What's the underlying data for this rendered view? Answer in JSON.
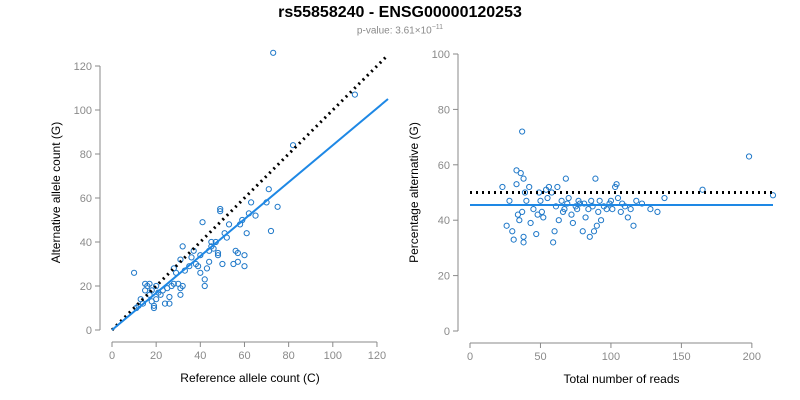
{
  "header": {
    "title": "rs55858240 - ENSG00000120253",
    "pvalue_prefix": "p-value: 3.61×10",
    "pvalue_exp": "−11"
  },
  "colors": {
    "point": "#1f78c8",
    "fit_line": "#1e88e5",
    "reference_line": "#000000",
    "axis": "#8a8a8a"
  },
  "chart_data": [
    {
      "type": "scatter",
      "title": "",
      "xlabel": "Reference allele count (C)",
      "ylabel": "Alternative allele count (G)",
      "xlim": [
        0,
        125
      ],
      "ylim": [
        0,
        125
      ],
      "xticks": [
        0,
        20,
        40,
        60,
        80,
        100,
        120
      ],
      "yticks": [
        0,
        20,
        40,
        60,
        80,
        100,
        120
      ],
      "grid": false,
      "lines": [
        {
          "kind": "reference",
          "style": "dotted",
          "x": [
            0,
            125
          ],
          "y": [
            0,
            125
          ]
        },
        {
          "kind": "fit",
          "style": "solid",
          "x": [
            0,
            125
          ],
          "y": [
            0,
            105
          ]
        }
      ],
      "points": [
        [
          10,
          26
        ],
        [
          11,
          10
        ],
        [
          12,
          11
        ],
        [
          13,
          14
        ],
        [
          14,
          12
        ],
        [
          15,
          18
        ],
        [
          15,
          21
        ],
        [
          16,
          20
        ],
        [
          17,
          16
        ],
        [
          17,
          21
        ],
        [
          18,
          13
        ],
        [
          18,
          18
        ],
        [
          19,
          11
        ],
        [
          19,
          10
        ],
        [
          20,
          14
        ],
        [
          20,
          20
        ],
        [
          21,
          17
        ],
        [
          22,
          16
        ],
        [
          23,
          18
        ],
        [
          24,
          12
        ],
        [
          25,
          19
        ],
        [
          26,
          15
        ],
        [
          26,
          12
        ],
        [
          27,
          20
        ],
        [
          28,
          28
        ],
        [
          28,
          21
        ],
        [
          29,
          26
        ],
        [
          30,
          21
        ],
        [
          31,
          19
        ],
        [
          31,
          16
        ],
        [
          31,
          32
        ],
        [
          32,
          38
        ],
        [
          32,
          20
        ],
        [
          33,
          27
        ],
        [
          35,
          29
        ],
        [
          36,
          33
        ],
        [
          37,
          36
        ],
        [
          38,
          30
        ],
        [
          39,
          29
        ],
        [
          40,
          34
        ],
        [
          40,
          26
        ],
        [
          41,
          49
        ],
        [
          42,
          23
        ],
        [
          42,
          20
        ],
        [
          43,
          28
        ],
        [
          44,
          31
        ],
        [
          44,
          36
        ],
        [
          45,
          38
        ],
        [
          45,
          40
        ],
        [
          46,
          37
        ],
        [
          47,
          40
        ],
        [
          48,
          35
        ],
        [
          48,
          34
        ],
        [
          49,
          54
        ],
        [
          49,
          55
        ],
        [
          50,
          30
        ],
        [
          51,
          44
        ],
        [
          52,
          42
        ],
        [
          53,
          48
        ],
        [
          55,
          30
        ],
        [
          56,
          36
        ],
        [
          57,
          35
        ],
        [
          57,
          31
        ],
        [
          58,
          48
        ],
        [
          59,
          50
        ],
        [
          60,
          34
        ],
        [
          60,
          29
        ],
        [
          61,
          44
        ],
        [
          62,
          53
        ],
        [
          63,
          58
        ],
        [
          65,
          52
        ],
        [
          70,
          58
        ],
        [
          71,
          64
        ],
        [
          72,
          45
        ],
        [
          73,
          126
        ],
        [
          75,
          56
        ],
        [
          82,
          84
        ],
        [
          110,
          107
        ]
      ]
    },
    {
      "type": "scatter",
      "title": "",
      "xlabel": "Total number of reads",
      "ylabel": "Percentage alternative (G)",
      "xlim": [
        0,
        215
      ],
      "ylim": [
        0,
        100
      ],
      "xticks": [
        0,
        50,
        100,
        150,
        200
      ],
      "yticks": [
        0,
        20,
        40,
        60,
        80,
        100
      ],
      "grid": false,
      "lines": [
        {
          "kind": "reference",
          "style": "dotted",
          "x": [
            0,
            215
          ],
          "y": [
            50,
            50
          ]
        },
        {
          "kind": "fit",
          "style": "solid",
          "x": [
            0,
            215
          ],
          "y": [
            45.5,
            45.5
          ]
        }
      ],
      "points": [
        [
          23,
          52
        ],
        [
          26,
          38
        ],
        [
          28,
          47
        ],
        [
          30,
          36
        ],
        [
          31,
          33
        ],
        [
          33,
          58
        ],
        [
          33,
          53
        ],
        [
          34,
          42
        ],
        [
          35,
          40
        ],
        [
          36,
          57
        ],
        [
          37,
          72
        ],
        [
          37,
          43
        ],
        [
          38,
          55
        ],
        [
          38,
          34
        ],
        [
          38,
          32
        ],
        [
          39,
          50
        ],
        [
          40,
          47
        ],
        [
          42,
          52
        ],
        [
          43,
          39
        ],
        [
          45,
          44
        ],
        [
          47,
          35
        ],
        [
          48,
          42
        ],
        [
          49,
          50
        ],
        [
          50,
          47
        ],
        [
          51,
          43
        ],
        [
          52,
          41
        ],
        [
          54,
          51
        ],
        [
          55,
          48
        ],
        [
          56,
          52
        ],
        [
          58,
          50
        ],
        [
          59,
          32
        ],
        [
          60,
          36
        ],
        [
          61,
          45
        ],
        [
          62,
          52
        ],
        [
          63,
          40
        ],
        [
          65,
          47
        ],
        [
          66,
          43
        ],
        [
          67,
          44
        ],
        [
          68,
          55
        ],
        [
          69,
          46
        ],
        [
          70,
          48
        ],
        [
          72,
          42
        ],
        [
          73,
          39
        ],
        [
          75,
          45
        ],
        [
          76,
          44
        ],
        [
          77,
          47
        ],
        [
          78,
          46
        ],
        [
          80,
          36
        ],
        [
          81,
          46
        ],
        [
          82,
          41
        ],
        [
          84,
          44
        ],
        [
          85,
          34
        ],
        [
          86,
          47
        ],
        [
          87,
          45
        ],
        [
          88,
          36
        ],
        [
          89,
          55
        ],
        [
          90,
          38
        ],
        [
          91,
          43
        ],
        [
          92,
          47
        ],
        [
          93,
          40
        ],
        [
          95,
          45
        ],
        [
          97,
          44
        ],
        [
          99,
          46
        ],
        [
          100,
          47
        ],
        [
          101,
          44
        ],
        [
          103,
          52
        ],
        [
          104,
          53
        ],
        [
          105,
          48
        ],
        [
          107,
          43
        ],
        [
          108,
          46
        ],
        [
          110,
          45
        ],
        [
          112,
          41
        ],
        [
          114,
          44
        ],
        [
          116,
          38
        ],
        [
          118,
          47
        ],
        [
          122,
          46
        ],
        [
          128,
          44
        ],
        [
          133,
          43
        ],
        [
          138,
          48
        ],
        [
          165,
          51
        ],
        [
          198,
          63
        ],
        [
          215,
          49
        ]
      ]
    }
  ]
}
